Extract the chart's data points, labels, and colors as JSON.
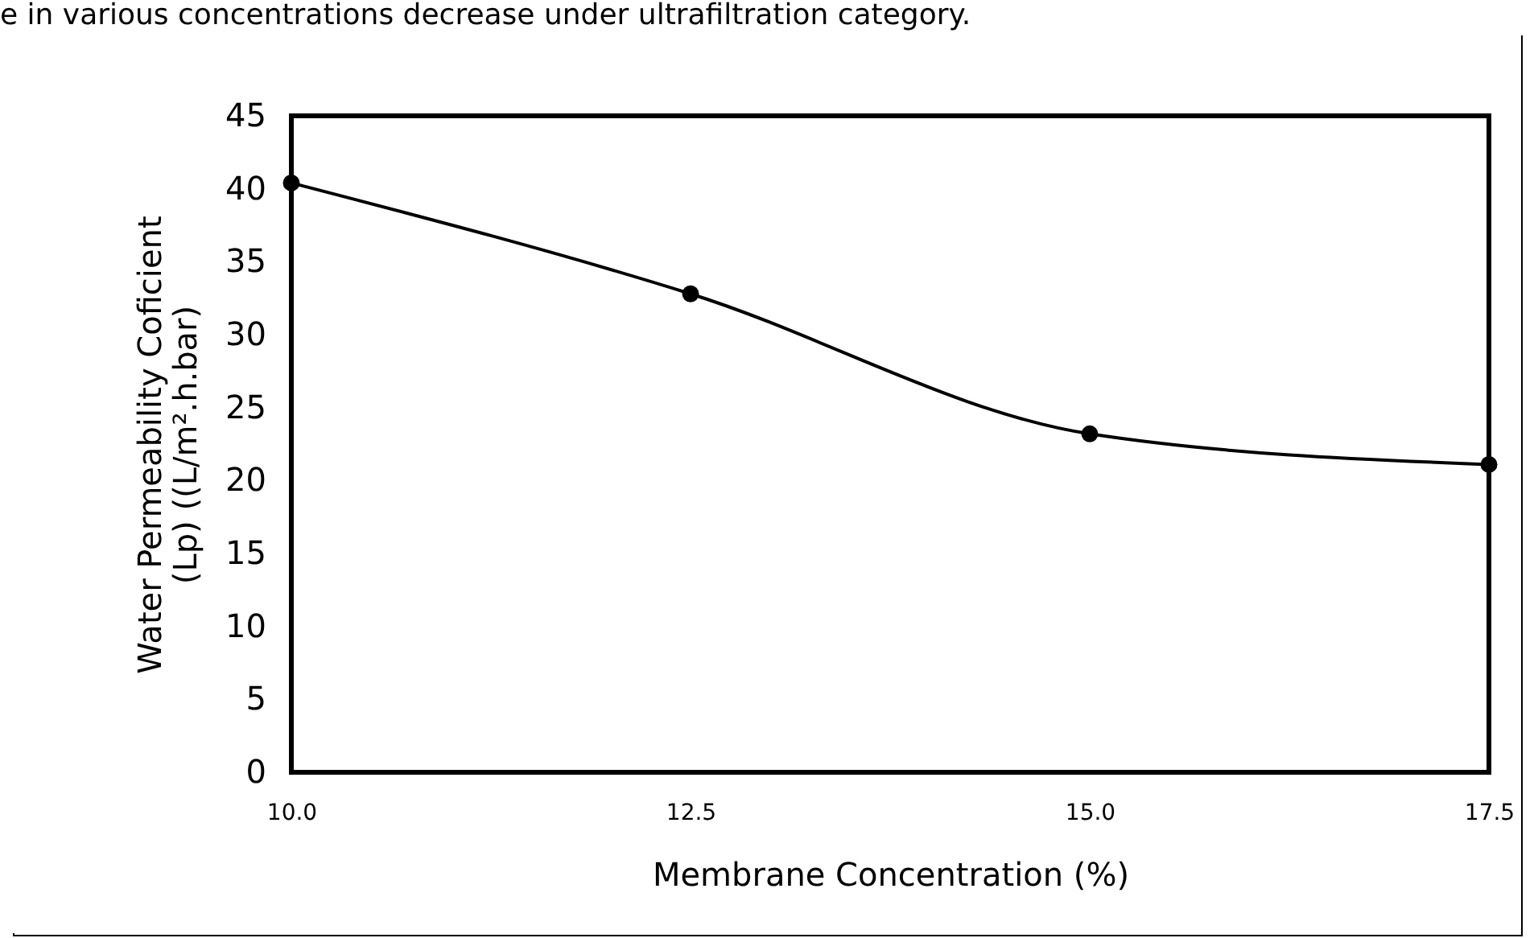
{
  "chart_data": {
    "type": "line",
    "xlabel": "Membrane Concentration (%)",
    "ylabel": "Water Permeability Coficient\n(Lp)  ((L/m².h.bar)",
    "annotations": [
      "e in various concentrations decrease under ultrafiltration category."
    ],
    "x": [
      10,
      12.5,
      15,
      17.5
    ],
    "series": [
      {
        "color": "#000000",
        "values": [
          40.4,
          32.8,
          23.2,
          21.1
        ]
      }
    ],
    "xlim": [
      10,
      17.5
    ],
    "xticks": [
      {
        "value": 10,
        "label": "10.0"
      },
      {
        "value": 12.5,
        "label": "12.5"
      },
      {
        "value": 15,
        "label": "15.0"
      },
      {
        "value": 17.5,
        "label": "17.5"
      }
    ],
    "ylim": [
      0,
      45
    ],
    "yticks": [
      0,
      5,
      10,
      15,
      20,
      25,
      30,
      35,
      40,
      45
    ],
    "grid": false,
    "marker": "circle",
    "line_style": "solid"
  }
}
